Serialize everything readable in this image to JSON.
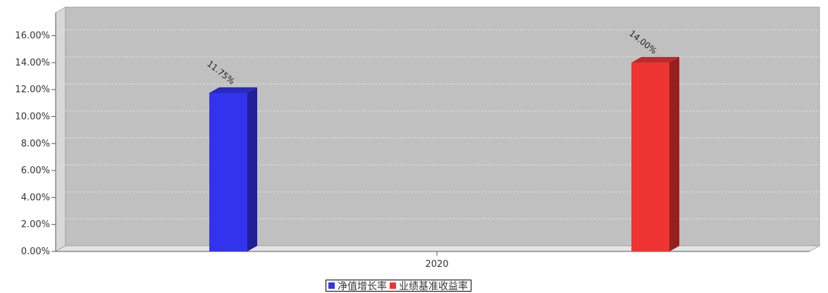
{
  "chart_data": {
    "type": "bar",
    "categories": [
      "2020"
    ],
    "series": [
      {
        "name": "净值增长率",
        "values": [
          11.75
        ],
        "label": "11.75%",
        "color": "#3333ee"
      },
      {
        "name": "业绩基准收益率",
        "values": [
          14.0
        ],
        "label": "14.00%",
        "color": "#ee3333"
      }
    ],
    "y_ticks": [
      "0.00%",
      "2.00%",
      "4.00%",
      "6.00%",
      "8.00%",
      "10.00%",
      "12.00%",
      "14.00%",
      "16.00%"
    ],
    "ylim": [
      0,
      17
    ],
    "grid": true,
    "style": "3d",
    "legend_position": "bottom-center",
    "plot_background": "#c0c0c0"
  }
}
